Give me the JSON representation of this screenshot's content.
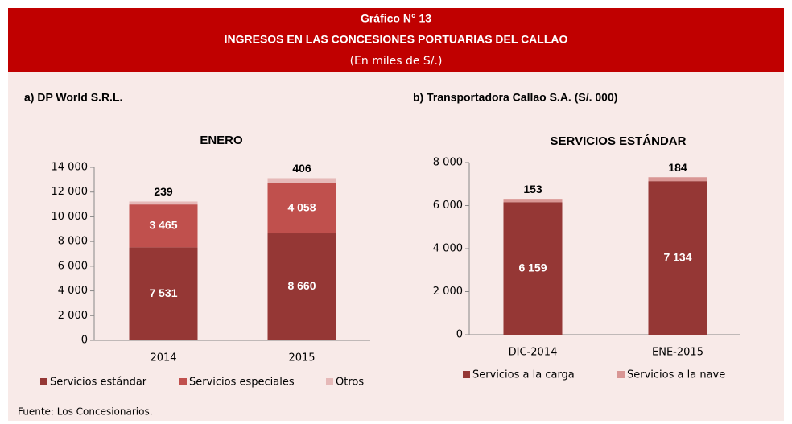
{
  "header": {
    "number": "Gráfico N° 13",
    "title": "INGRESOS EN LAS CONCESIONES PORTUARIAS DEL CALLAO",
    "subtitle": "(En miles de S/.)"
  },
  "source": "Fuente: Los Concesionarios.",
  "chart_data": [
    {
      "type": "stacked_bar",
      "panel_label": "a) DP World S.R.L.",
      "title": "ENERO",
      "categories": [
        "2014",
        "2015"
      ],
      "series": [
        {
          "name": "Servicios estándar",
          "color": "#953735",
          "values": [
            7531,
            8660
          ],
          "value_labels": [
            "7 531",
            "8 660"
          ]
        },
        {
          "name": "Servicios especiales",
          "color": "#c0504d",
          "values": [
            3465,
            4058
          ],
          "value_labels": [
            "3 465",
            "4 058"
          ]
        },
        {
          "name": "Otros",
          "color": "#e6b9b8",
          "values": [
            239,
            406
          ]
        }
      ],
      "ylim": [
        0,
        14000
      ],
      "yticks": [
        0,
        {
          "value": 2000,
          "label": "2 000"
        },
        {
          "value": 4000,
          "label": "4 000"
        },
        {
          "value": 6000,
          "label": "6 000"
        },
        {
          "value": 8000,
          "label": "8 000"
        },
        {
          "value": 10000,
          "label": "10 000"
        },
        {
          "value": 12000,
          "label": "12 000"
        },
        {
          "value": 14000,
          "label": "14 000"
        }
      ],
      "legend": "bottom"
    },
    {
      "type": "stacked_bar",
      "panel_label": "b) Transportadora Callao S.A. (S/. 000)",
      "title": "SERVICIOS ESTÁNDAR",
      "categories": [
        "DIC-2014",
        "ENE-2015"
      ],
      "series": [
        {
          "name": "Servicios a la carga",
          "color": "#953735",
          "values": [
            6159,
            7134
          ],
          "value_labels": [
            "6 159",
            "7 134"
          ]
        },
        {
          "name": "Servicios a la nave",
          "color": "#d99694",
          "values": [
            153,
            184
          ]
        }
      ],
      "ylim": [
        0,
        8000
      ],
      "yticks": [
        0,
        {
          "value": 2000,
          "label": "2 000"
        },
        {
          "value": 4000,
          "label": "4 000"
        },
        {
          "value": 6000,
          "label": "6 000"
        },
        {
          "value": 8000,
          "label": "8 000"
        }
      ],
      "legend": "bottom"
    }
  ]
}
